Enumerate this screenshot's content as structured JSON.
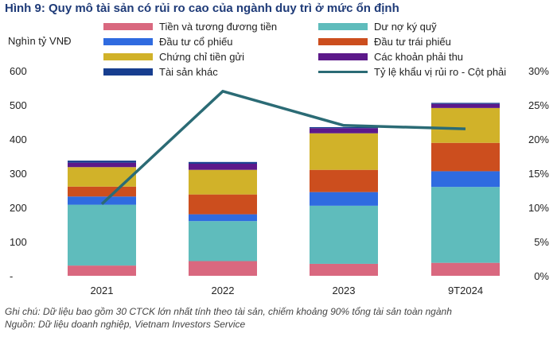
{
  "chart_data": {
    "type": "bar",
    "stacked": true,
    "title": "Hình 9: Quy mô tài sản có rủi ro cao của ngành duy trì ở mức ổn định",
    "ylabel": "Nghìn tỷ VNĐ",
    "ylim": [
      0,
      600
    ],
    "y_ticks": [
      "600",
      "500",
      "400",
      "300",
      "200",
      "100",
      "-"
    ],
    "y2lim": [
      0,
      30
    ],
    "y2_ticks": [
      "30%",
      "25%",
      "20%",
      "15%",
      "10%",
      "5%",
      "0%"
    ],
    "categories": [
      "2021",
      "2022",
      "2023",
      "9T2024"
    ],
    "series": [
      {
        "name": "Tiền và tương đương tiền",
        "color": "#d9687f",
        "values": [
          30,
          43,
          35,
          38
        ]
      },
      {
        "name": "Dư nợ ký quỹ",
        "color": "#5fbcbc",
        "values": [
          178,
          117,
          170,
          222
        ]
      },
      {
        "name": "Đầu tư cổ phiếu",
        "color": "#2f6be0",
        "values": [
          24,
          20,
          40,
          46
        ]
      },
      {
        "name": "Đầu tư trái phiếu",
        "color": "#cc4e1e",
        "values": [
          29,
          58,
          65,
          83
        ]
      },
      {
        "name": "Chứng chỉ tiền gửi",
        "color": "#d1b229",
        "values": [
          57,
          72,
          107,
          102
        ]
      },
      {
        "name": "Các khoản phải thu",
        "color": "#5c198a",
        "values": [
          13,
          18,
          15,
          12
        ]
      },
      {
        "name": "Tài sản khác",
        "color": "#173e8f",
        "values": [
          6,
          5,
          3,
          3
        ]
      }
    ],
    "line_series": {
      "name": "Tỷ lệ khẩu vị rủi ro - Cột phải",
      "color": "#2b6b75",
      "axis": "right",
      "values": [
        10.5,
        27,
        22,
        21.5
      ]
    }
  },
  "footnote": {
    "note": "Ghi chú: Dữ liệu bao gồm 30 CTCK lớn nhất tính theo tài sản, chiếm khoảng 90% tổng tài sản toàn ngành",
    "source": "Nguồn: Dữ liệu doanh nghiệp, Vietnam Investors Service"
  }
}
